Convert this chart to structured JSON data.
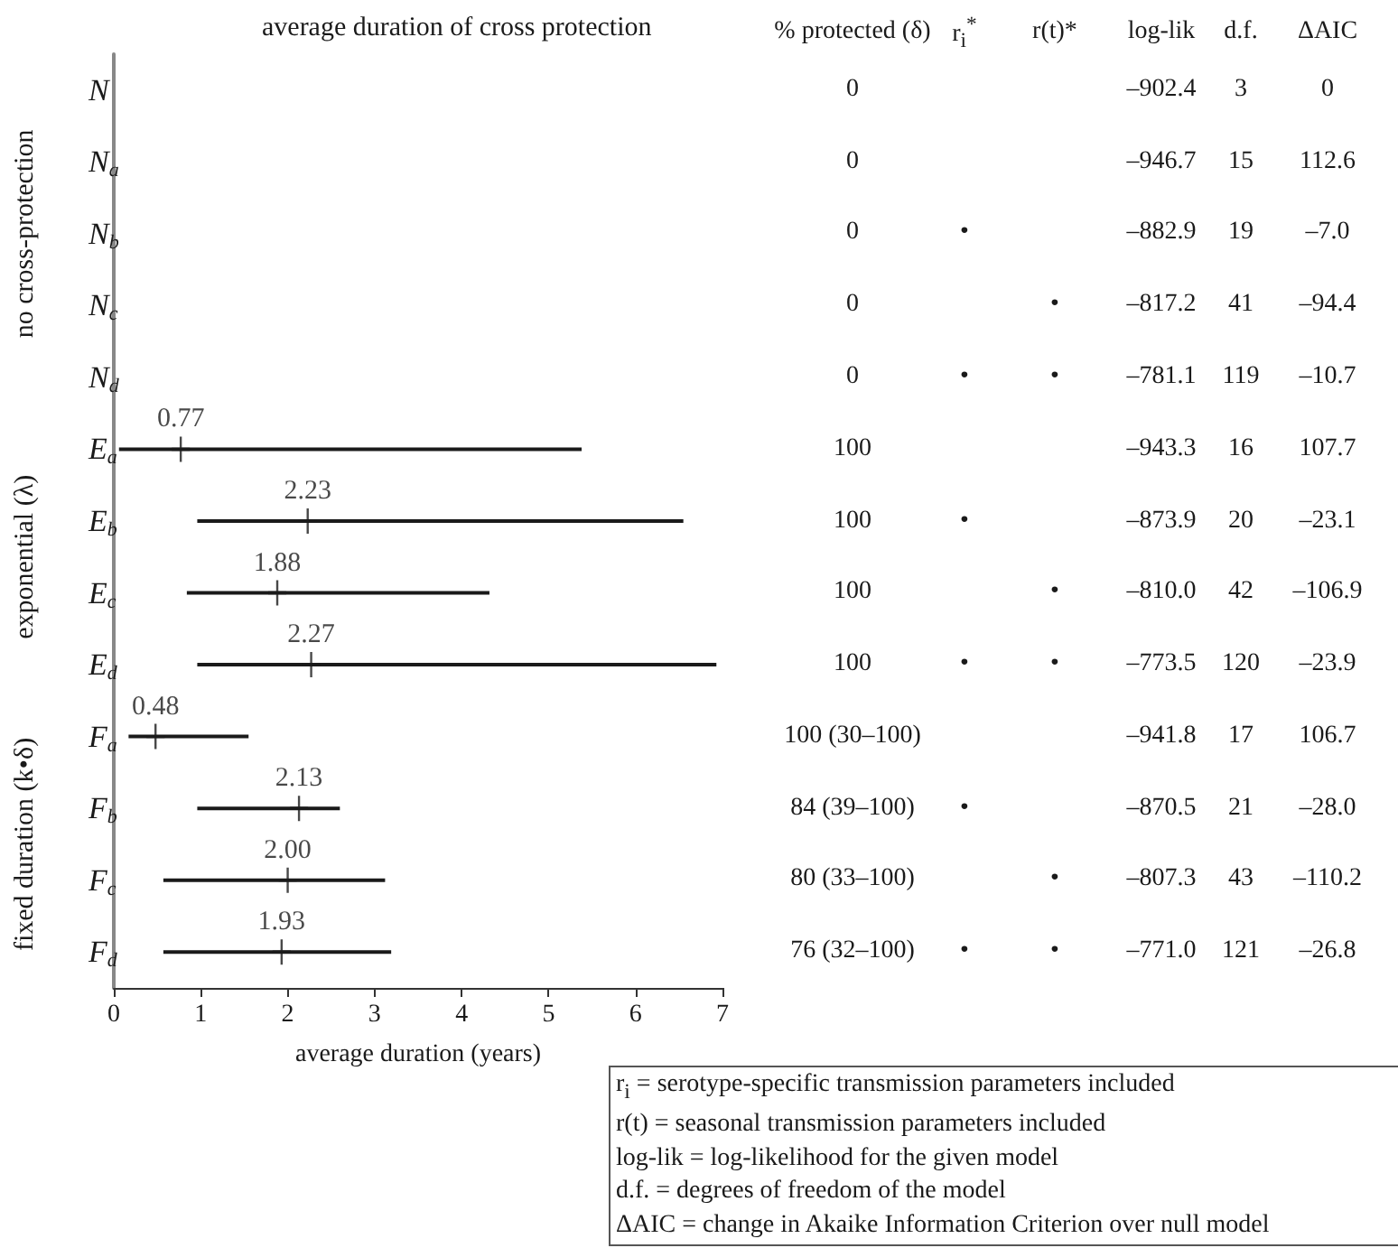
{
  "chart_data": [
    {
      "type": "scatter",
      "orientation": "horizontal",
      "title": "average duration of cross protection",
      "xlabel": "average duration (years)",
      "categories": [
        "N",
        "N$_{a}$",
        "N$_{b}$",
        "N$_{c}$",
        "N$_{d}$",
        "E$_{a}$",
        "E$_{b}$",
        "E$_{c}$",
        "E$_{d}$",
        "F$_{a}$",
        "F$_{b}$",
        "F$_{c}$",
        "F$_{d}$"
      ],
      "values": [
        null,
        null,
        null,
        null,
        null,
        0.77,
        2.23,
        1.88,
        2.27,
        0.48,
        2.13,
        2.0,
        1.93
      ],
      "value_labels": [
        null,
        null,
        null,
        null,
        null,
        "0.77",
        "2.23",
        "1.88",
        "2.27",
        "0.48",
        "2.13",
        "2.00",
        "1.93"
      ],
      "errors": [
        null,
        null,
        null,
        null,
        null,
        [
          0.06,
          5.38
        ],
        [
          0.96,
          6.55
        ],
        [
          0.84,
          4.32
        ],
        [
          0.96,
          6.93
        ],
        [
          0.17,
          1.55
        ],
        [
          0.96,
          2.6
        ],
        [
          0.57,
          3.12
        ],
        [
          0.57,
          3.19
        ]
      ],
      "color": "#1a1a1a",
      "xlim": [
        0,
        7
      ],
      "xticks": [
        0,
        1,
        2,
        3,
        4,
        5,
        6,
        7
      ],
      "marker": "cross",
      "annotations": [
        "no cross-protection",
        "exponential (λ)",
        "fixed duration (k•δ)"
      ]
    },
    {
      "type": "other",
      "categories": [
        "% protected (δ)",
        "r$_{i}$$^{*}$",
        "r(t)*",
        "log-lik",
        "d.f.",
        "ΔAIC"
      ],
      "cell_labels": [
        [
          "0",
          null,
          null,
          "–902.4",
          "3",
          "0"
        ],
        [
          "0",
          null,
          null,
          "–946.7",
          "15",
          "112.6"
        ],
        [
          "0",
          "•",
          null,
          "–882.9",
          "19",
          "–7.0"
        ],
        [
          "0",
          null,
          "•",
          "–817.2",
          "41",
          "–94.4"
        ],
        [
          "0",
          "•",
          "•",
          "–781.1",
          "119",
          "–10.7"
        ],
        [
          "100",
          null,
          null,
          "–943.3",
          "16",
          "107.7"
        ],
        [
          "100",
          "•",
          null,
          "–873.9",
          "20",
          "–23.1"
        ],
        [
          "100",
          null,
          "•",
          "–810.0",
          "42",
          "–106.9"
        ],
        [
          "100",
          "•",
          "•",
          "–773.5",
          "120",
          "–23.9"
        ],
        [
          "100 (30–100)",
          null,
          null,
          "–941.8",
          "17",
          "106.7"
        ],
        [
          "84 (39–100)",
          "•",
          null,
          "–870.5",
          "21",
          "–28.0"
        ],
        [
          "80 (33–100)",
          null,
          "•",
          "–807.3",
          "43",
          "–110.2"
        ],
        [
          "76 (32–100)",
          "•",
          "•",
          "–771.0",
          "121",
          "–26.8"
        ]
      ],
      "annotations": [
        "r$_{i}$ = serotype-specific transmission parameters included",
        "r(t) = seasonal transmission parameters included",
        "log-lik = log-likelihood for the given model",
        "d.f. = degrees of freedom of the model",
        "ΔAIC = change in Akaike Information Criterion over null model"
      ]
    }
  ]
}
